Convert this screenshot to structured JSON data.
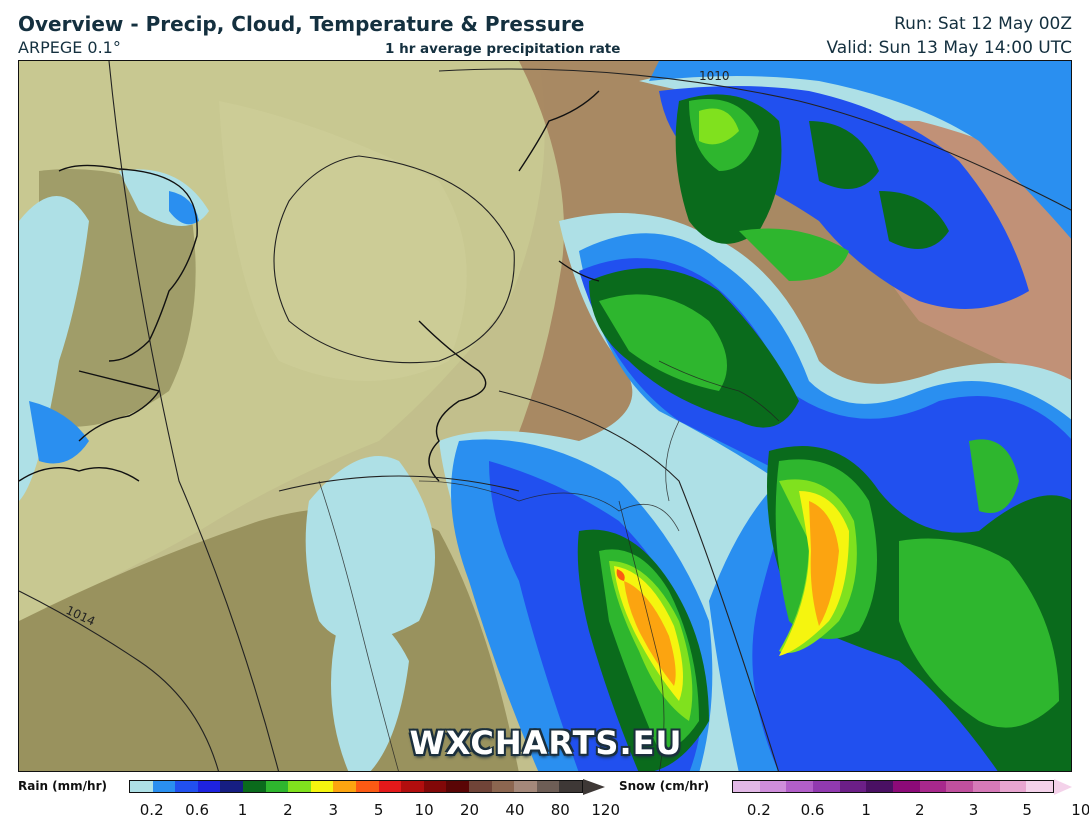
{
  "header": {
    "title": "Overview - Precip, Cloud, Temperature & Pressure",
    "subtitle": "ARPEGE 0.1°",
    "center_label": "1 hr average precipitation rate",
    "run": "Run: Sat 12 May 00Z",
    "valid": "Valid: Sun 13 May 14:00 UTC"
  },
  "map": {
    "watermark": "WXCHARTS.EU",
    "isobar_labels": [
      "1010",
      "1014"
    ]
  },
  "legend": {
    "rain": {
      "title": "Rain (mm/hr)",
      "colors": [
        "#aee0e6",
        "#2a8ff0",
        "#2150ef",
        "#1e23e0",
        "#161e82",
        "#0a6b1c",
        "#2eb62e",
        "#80e11e",
        "#f5f50f",
        "#fca410",
        "#fc5a14",
        "#e4191a",
        "#b20e0e",
        "#820808",
        "#5a0505",
        "#704438",
        "#8c6650",
        "#a4887a",
        "#6e5e56",
        "#3e3836"
      ],
      "tick_labels": [
        "0.2",
        "0.6",
        "1",
        "2",
        "3",
        "5",
        "10",
        "20",
        "40",
        "80",
        "120"
      ]
    },
    "snow": {
      "title": "Snow (cm/hr)",
      "colors": [
        "#e2b8e6",
        "#cf8edb",
        "#b25fc9",
        "#913ab0",
        "#6c1f87",
        "#4a1063",
        "#8c0a78",
        "#a8288c",
        "#c0509e",
        "#d67ab8",
        "#e8a6d0",
        "#f4d2ea"
      ],
      "tick_labels": [
        "0.2",
        "0.6",
        "1",
        "2",
        "3",
        "5",
        "10"
      ]
    }
  }
}
